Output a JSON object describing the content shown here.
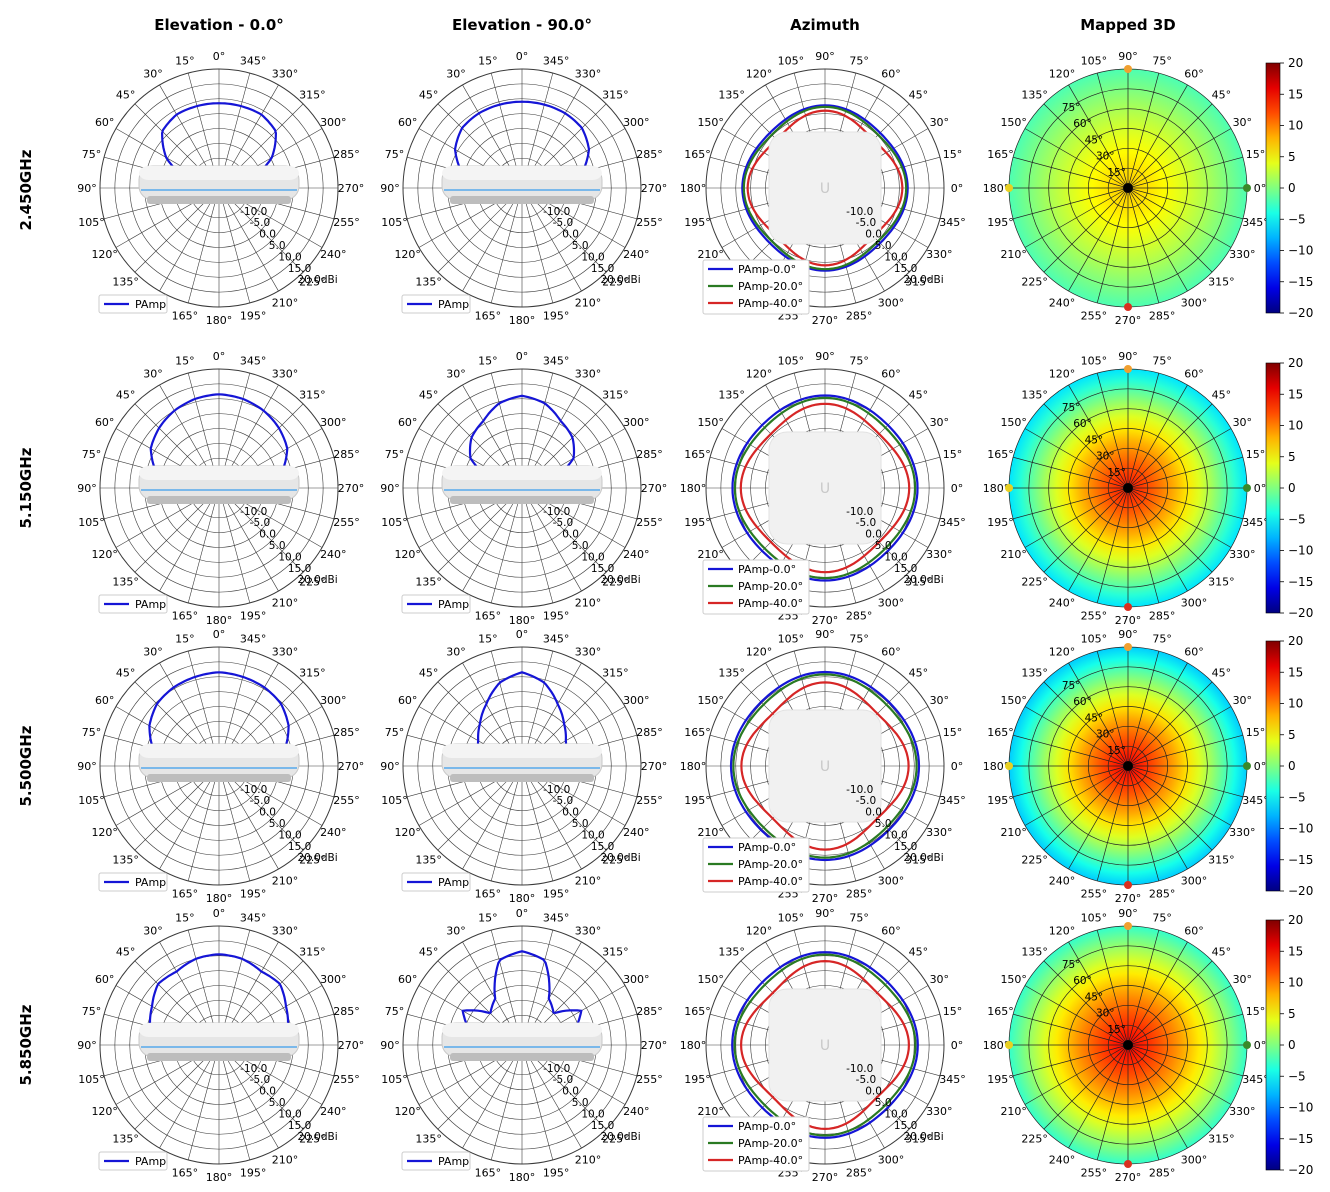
{
  "column_titles": [
    "Elevation - 0.0°",
    "Elevation - 90.0°",
    "Azimuth",
    "Mapped 3D"
  ],
  "row_labels": [
    "2.450GHz",
    "5.150GHz",
    "5.500GHz",
    "5.850GHz"
  ],
  "colors": {
    "PAmp": "#1515d6",
    "PAmp-0.0°": "#1515d6",
    "PAmp-20.0°": "#2a7a22",
    "PAmp-40.0°": "#d62626",
    "grid": "#3a3a3a",
    "marker_top": "#f0a030",
    "marker_bottom": "#d93020",
    "marker_left": "#e8d020",
    "marker_right": "#3a8a2a"
  },
  "chart_data": {
    "type": "polar",
    "radial_unit": "dBi",
    "radial_range": [
      -20,
      20
    ],
    "radial_tick_labels": [
      "-10.0",
      "-5.0",
      "0.0",
      "5.0",
      "10.0",
      "15.0",
      "20.0dBi"
    ],
    "elevation_angle_labels": [
      "0°",
      "345°",
      "330°",
      "315°",
      "300°",
      "285°",
      "270°",
      "255°",
      "240°",
      "225°",
      "210°",
      "195°",
      "180°",
      "165°",
      "150°",
      "135°",
      "120°",
      "105°",
      "90°",
      "75°",
      "60°",
      "45°",
      "30°",
      "15°"
    ],
    "azimuth_angle_labels": [
      "90°",
      "75°",
      "60°",
      "45°",
      "30°",
      "15°",
      "0°",
      "345°",
      "330°",
      "315°",
      "300°",
      "285°",
      "270°",
      "255°",
      "240°",
      "225°",
      "210°",
      "195°",
      "180°",
      "165°",
      "150°",
      "135°",
      "120°",
      "105°"
    ],
    "elevation_legend": [
      "PAmp"
    ],
    "azimuth_legend": [
      "PAmp-0.0°",
      "PAmp-20.0°",
      "PAmp-40.0°"
    ],
    "colorbar": {
      "ticks": [
        20,
        15,
        10,
        5,
        0,
        -5,
        -10,
        -15,
        -20
      ],
      "range": [
        -20,
        20
      ],
      "colormap": "jet"
    },
    "mapped_3d_ring_labels": [
      "75°",
      "60°",
      "45°",
      "30°",
      "15°"
    ],
    "rows": [
      {
        "frequency": "2.450GHz",
        "elevation_0": {
          "angles_deg": [
            -90,
            -60,
            -45,
            -30,
            -15,
            0,
            15,
            30,
            45,
            60,
            90
          ],
          "gain_dbi": [
            -20,
            0.5,
            7,
            8.5,
            8.5,
            8.5,
            8.5,
            8.5,
            7,
            0.5,
            -20
          ]
        },
        "elevation_90": {
          "angles_deg": [
            -90,
            -75,
            -60,
            -45,
            -30,
            -15,
            0,
            15,
            30,
            45,
            60,
            75,
            90
          ],
          "gain_dbi": [
            -20,
            1,
            6,
            8.5,
            9,
            9,
            9,
            9,
            9,
            8.5,
            6,
            1,
            -20
          ]
        },
        "azimuth": [
          {
            "name": "PAmp-0.0°",
            "level_dbi": 7,
            "ripple_dbi": 0.8,
            "lobes": 4
          },
          {
            "name": "PAmp-20.0°",
            "level_dbi": 6.3,
            "ripple_dbi": 1.0,
            "lobes": 4
          },
          {
            "name": "PAmp-40.0°",
            "level_dbi": 4.5,
            "ripple_dbi": 1.5,
            "lobes": 4
          }
        ],
        "mapped_3d": {
          "center_dbi": 7,
          "edge_dbi": -2
        }
      },
      {
        "frequency": "5.150GHz",
        "elevation_0": {
          "angles_deg": [
            -90,
            -75,
            -60,
            -45,
            -30,
            -15,
            0,
            15,
            30,
            45,
            60,
            75,
            90
          ],
          "gain_dbi": [
            -20,
            2,
            6.5,
            8.5,
            10,
            11,
            11.5,
            11,
            10,
            8.5,
            6.5,
            2,
            -20
          ]
        },
        "elevation_90": {
          "angles_deg": [
            -90,
            -75,
            -60,
            -45,
            -30,
            -15,
            0,
            15,
            30,
            45,
            60,
            75,
            90
          ],
          "gain_dbi": [
            -20,
            -10,
            0,
            4,
            6,
            9.5,
            11,
            9.5,
            6,
            4,
            0,
            -10,
            -20
          ]
        },
        "azimuth": [
          {
            "name": "PAmp-0.0°",
            "level_dbi": 10.5,
            "ripple_dbi": 0.6,
            "lobes": 4
          },
          {
            "name": "PAmp-20.0°",
            "level_dbi": 9.5,
            "ripple_dbi": 0.8,
            "lobes": 4
          },
          {
            "name": "PAmp-40.0°",
            "level_dbi": 7.0,
            "ripple_dbi": 1.3,
            "lobes": 4
          }
        ],
        "mapped_3d": {
          "center_dbi": 14,
          "edge_dbi": -6
        }
      },
      {
        "frequency": "5.500GHz",
        "elevation_0": {
          "angles_deg": [
            -90,
            -75,
            -60,
            -45,
            -30,
            -15,
            0,
            15,
            30,
            45,
            60,
            75,
            90
          ],
          "gain_dbi": [
            -20,
            3,
            7,
            9.5,
            10.5,
            11,
            11.5,
            11,
            10.5,
            9.5,
            7,
            3,
            -20
          ]
        },
        "elevation_90": {
          "angles_deg": [
            -90,
            -75,
            -60,
            -45,
            -30,
            -15,
            0,
            15,
            30,
            45,
            60,
            75,
            90
          ],
          "gain_dbi": [
            -20,
            -5,
            -3,
            0,
            4,
            9,
            11.5,
            9,
            4,
            0,
            -3,
            -5,
            -20
          ]
        },
        "azimuth": [
          {
            "name": "PAmp-0.0°",
            "level_dbi": 11,
            "ripple_dbi": 0.6,
            "lobes": 4
          },
          {
            "name": "PAmp-20.0°",
            "level_dbi": 10,
            "ripple_dbi": 0.8,
            "lobes": 4
          },
          {
            "name": "PAmp-40.0°",
            "level_dbi": 6.5,
            "ripple_dbi": 1.6,
            "lobes": 4
          }
        ],
        "mapped_3d": {
          "center_dbi": 15,
          "edge_dbi": -7
        }
      },
      {
        "frequency": "5.850GHz",
        "elevation_0": {
          "angles_deg": [
            -90,
            -75,
            -60,
            -45,
            -30,
            -15,
            0,
            15,
            30,
            45,
            60,
            75,
            90
          ],
          "gain_dbi": [
            -20,
            4,
            6,
            9,
            8.5,
            10,
            10.5,
            10,
            8.5,
            9,
            6,
            4,
            -20
          ]
        },
        "elevation_90": {
          "angles_deg": [
            -90,
            -75,
            -60,
            -45,
            -30,
            -15,
            0,
            15,
            30,
            45,
            60,
            75,
            90
          ],
          "gain_dbi": [
            -20,
            -2,
            3,
            -5,
            -2,
            9.5,
            11.5,
            9.5,
            -2,
            -5,
            3,
            -2,
            -20
          ]
        },
        "azimuth": [
          {
            "name": "PAmp-0.0°",
            "level_dbi": 10.5,
            "ripple_dbi": 0.7,
            "lobes": 4
          },
          {
            "name": "PAmp-20.0°",
            "level_dbi": 9.5,
            "ripple_dbi": 0.9,
            "lobes": 4
          },
          {
            "name": "PAmp-40.0°",
            "level_dbi": 6.5,
            "ripple_dbi": 1.7,
            "lobes": 4
          }
        ],
        "mapped_3d": {
          "center_dbi": 15,
          "edge_dbi": -3
        }
      }
    ]
  }
}
